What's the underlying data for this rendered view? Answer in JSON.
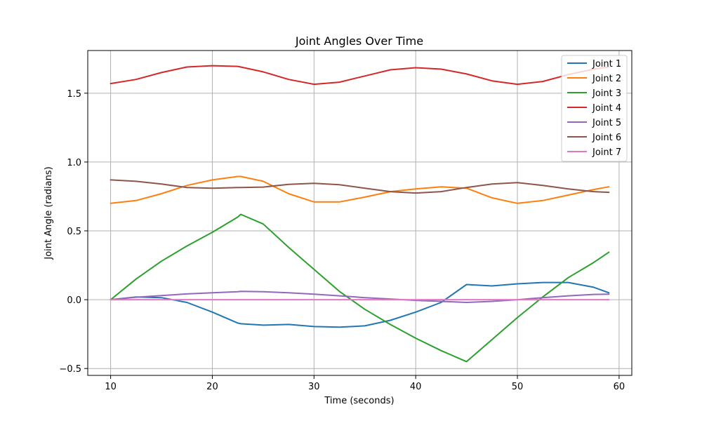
{
  "chart_data": {
    "type": "line",
    "title": "Joint Angles Over Time",
    "xlabel": "Time (seconds)",
    "ylabel": "Joint Angle (radians)",
    "xlim": [
      7.75,
      61.25
    ],
    "ylim": [
      -0.55,
      1.81
    ],
    "xticks": [
      10,
      20,
      30,
      40,
      50,
      60
    ],
    "xtick_labels": [
      "10",
      "20",
      "30",
      "40",
      "50",
      "60"
    ],
    "yticks": [
      -0.5,
      0.0,
      0.5,
      1.0,
      1.5
    ],
    "ytick_labels": [
      "−0.5",
      "0.0",
      "0.5",
      "1.0",
      "1.5"
    ],
    "grid": true,
    "legend_position": "top-right",
    "x": [
      10,
      12.5,
      15,
      17.5,
      20,
      22.5,
      22.8,
      25,
      27.5,
      30,
      32.5,
      35,
      37.5,
      40,
      42.5,
      45,
      47.5,
      50,
      52.5,
      55,
      57.5,
      59
    ],
    "series": [
      {
        "name": "Joint 1",
        "color": "#1f77b4",
        "values": [
          0.0,
          0.02,
          0.015,
          -0.02,
          -0.09,
          -0.17,
          -0.175,
          -0.185,
          -0.18,
          -0.195,
          -0.2,
          -0.19,
          -0.15,
          -0.09,
          -0.02,
          0.11,
          0.1,
          0.115,
          0.125,
          0.125,
          0.09,
          0.05
        ]
      },
      {
        "name": "Joint 2",
        "color": "#ff7f0e",
        "values": [
          0.7,
          0.72,
          0.77,
          0.83,
          0.87,
          0.895,
          0.895,
          0.86,
          0.77,
          0.71,
          0.71,
          0.745,
          0.785,
          0.805,
          0.82,
          0.81,
          0.74,
          0.7,
          0.72,
          0.76,
          0.8,
          0.82
        ]
      },
      {
        "name": "Joint 3",
        "color": "#2ca02c",
        "values": [
          0.0,
          0.15,
          0.28,
          0.39,
          0.49,
          0.6,
          0.62,
          0.55,
          0.38,
          0.22,
          0.06,
          -0.07,
          -0.18,
          -0.28,
          -0.37,
          -0.45,
          -0.29,
          -0.13,
          0.02,
          0.16,
          0.27,
          0.345
        ]
      },
      {
        "name": "Joint 4",
        "color": "#d62728",
        "values": [
          1.57,
          1.6,
          1.65,
          1.69,
          1.7,
          1.695,
          1.69,
          1.655,
          1.6,
          1.565,
          1.58,
          1.625,
          1.67,
          1.685,
          1.675,
          1.64,
          1.59,
          1.565,
          1.585,
          1.635,
          1.675,
          1.69
        ]
      },
      {
        "name": "Joint 5",
        "color": "#9467bd",
        "values": [
          0.0,
          0.018,
          0.03,
          0.042,
          0.05,
          0.058,
          0.06,
          0.058,
          0.05,
          0.04,
          0.028,
          0.015,
          0.005,
          -0.005,
          -0.012,
          -0.02,
          -0.012,
          0.0,
          0.015,
          0.028,
          0.038,
          0.04
        ]
      },
      {
        "name": "Joint 6",
        "color": "#8c564b",
        "values": [
          0.87,
          0.86,
          0.84,
          0.815,
          0.81,
          0.815,
          0.815,
          0.818,
          0.838,
          0.845,
          0.835,
          0.81,
          0.785,
          0.775,
          0.785,
          0.815,
          0.84,
          0.85,
          0.83,
          0.805,
          0.785,
          0.78
        ]
      },
      {
        "name": "Joint 7",
        "color": "#e377c2",
        "values": [
          0.0,
          0.0,
          0.0,
          0.0,
          0.0,
          0.0,
          0.0,
          0.0,
          0.0,
          0.0,
          0.0,
          0.0,
          0.0,
          0.0,
          0.0,
          0.0,
          0.0,
          0.0,
          0.0,
          0.0,
          0.0,
          0.0
        ]
      }
    ]
  }
}
